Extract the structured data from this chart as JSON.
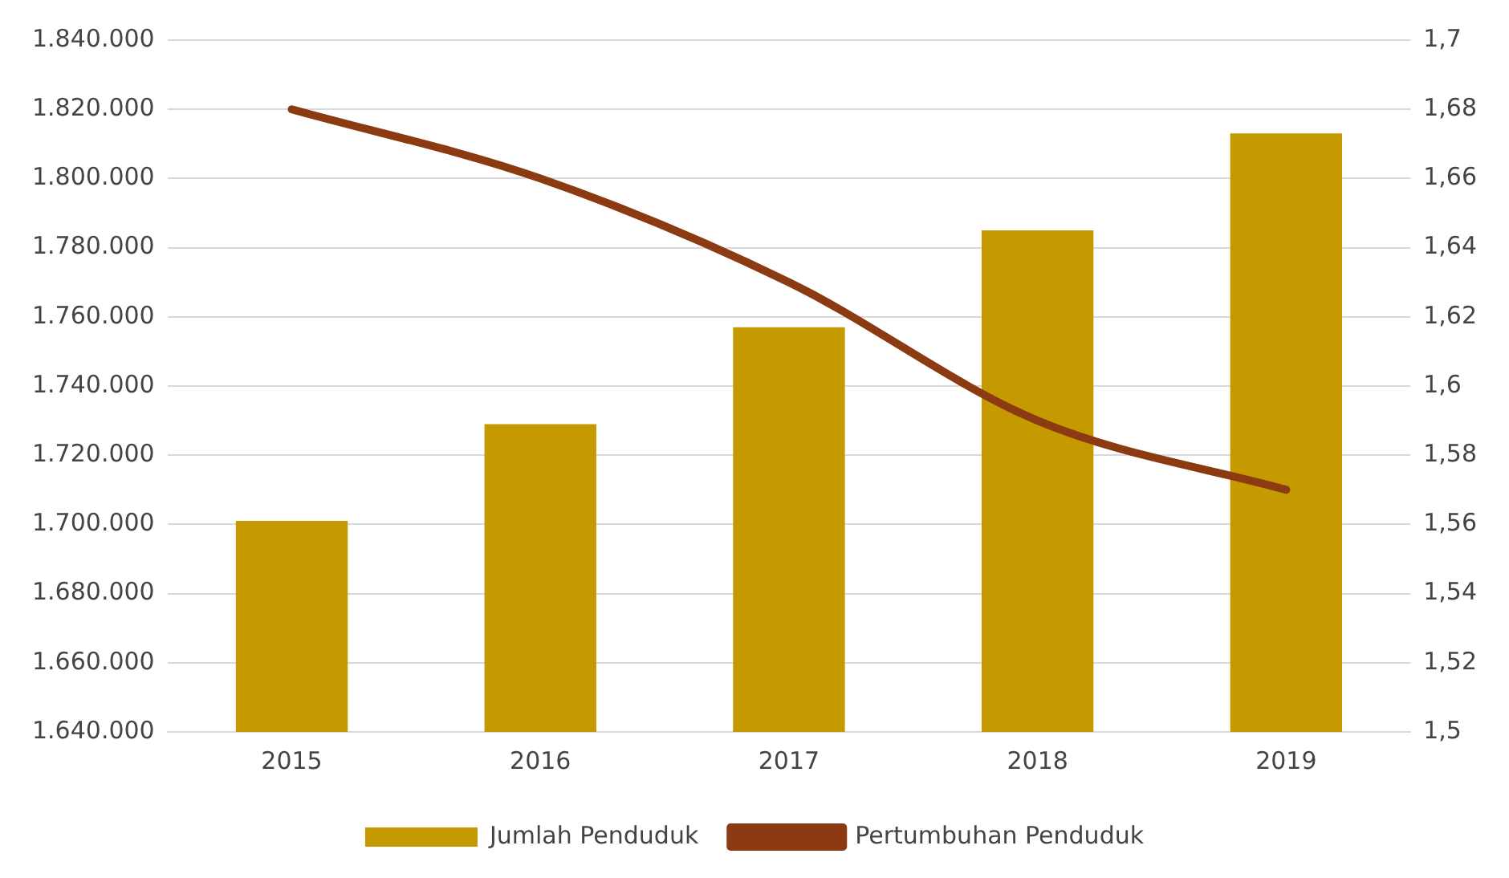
{
  "chart_data": {
    "type": "bar",
    "categories": [
      "2015",
      "2016",
      "2017",
      "2018",
      "2019"
    ],
    "series": [
      {
        "name": "Jumlah Penduduk",
        "color": "#c49a00",
        "values": [
          1701000,
          1729000,
          1757000,
          1785000,
          1813000
        ]
      },
      {
        "name": "Pertumbuhan Penduduk",
        "type": "line",
        "axis": "y2",
        "color": "#8b3a12",
        "values": [
          1.68,
          1.66,
          1.63,
          1.59,
          1.57
        ]
      }
    ],
    "ylim": [
      1640000,
      1840000
    ],
    "yticks": [
      {
        "value": 1640000,
        "label": "1.640.000"
      },
      {
        "value": 1660000,
        "label": "1.660.000"
      },
      {
        "value": 1680000,
        "label": "1.680.000"
      },
      {
        "value": 1700000,
        "label": "1.700.000"
      },
      {
        "value": 1720000,
        "label": "1.720.000"
      },
      {
        "value": 1740000,
        "label": "1.740.000"
      },
      {
        "value": 1760000,
        "label": "1.760.000"
      },
      {
        "value": 1780000,
        "label": "1.780.000"
      },
      {
        "value": 1800000,
        "label": "1.800.000"
      },
      {
        "value": 1820000,
        "label": "1.820.000"
      },
      {
        "value": 1840000,
        "label": "1.840.000"
      }
    ],
    "y2lim": [
      1.5,
      1.7
    ],
    "y2ticks": [
      {
        "value": 1.5,
        "label": "1,5"
      },
      {
        "value": 1.52,
        "label": "1,52"
      },
      {
        "value": 1.54,
        "label": "1,54"
      },
      {
        "value": 1.56,
        "label": "1,56"
      },
      {
        "value": 1.58,
        "label": "1,58"
      },
      {
        "value": 1.6,
        "label": "1,6"
      },
      {
        "value": 1.62,
        "label": "1,62"
      },
      {
        "value": 1.64,
        "label": "1,64"
      },
      {
        "value": 1.66,
        "label": "1,66"
      },
      {
        "value": 1.68,
        "label": "1,68"
      },
      {
        "value": 1.7,
        "label": "1,7"
      }
    ],
    "grid": "y",
    "legend": "bottom",
    "marker": "none",
    "line_style": "solid"
  }
}
